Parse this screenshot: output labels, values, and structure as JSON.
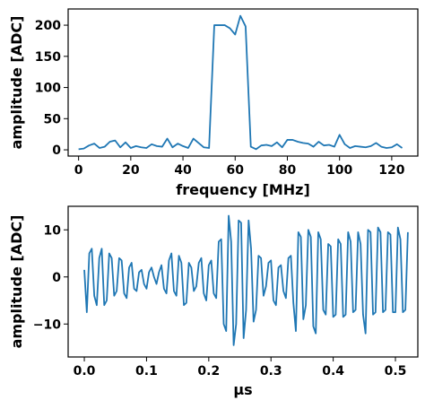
{
  "chart_data": [
    {
      "type": "line",
      "xlabel": "frequency [MHz]",
      "ylabel": "amplitude [ADC]",
      "xlim": [
        -4,
        130
      ],
      "ylim": [
        -10,
        226
      ],
      "xticks": [
        "0",
        "20",
        "40",
        "60",
        "80",
        "100",
        "120"
      ],
      "yticks": [
        "0",
        "50",
        "100",
        "150",
        "200"
      ],
      "grid": false,
      "series": [
        {
          "color": "#1f77b4",
          "x": [
            0,
            2,
            4,
            6,
            8,
            10,
            12,
            14,
            16,
            18,
            20,
            22,
            24,
            26,
            28,
            30,
            32,
            34,
            36,
            38,
            40,
            42,
            44,
            46,
            48,
            50,
            52,
            54,
            56,
            58,
            60,
            62,
            64,
            66,
            68,
            70,
            72,
            74,
            76,
            78,
            80,
            82,
            84,
            86,
            88,
            90,
            92,
            94,
            96,
            98,
            100,
            102,
            104,
            106,
            108,
            110,
            112,
            114,
            116,
            118,
            120,
            122,
            124
          ],
          "values": [
            1,
            2,
            7,
            10,
            3,
            5,
            13,
            15,
            4,
            12,
            3,
            6,
            4,
            3,
            9,
            6,
            5,
            18,
            4,
            10,
            6,
            3,
            18,
            11,
            4,
            3,
            200,
            200,
            200,
            195,
            185,
            215,
            198,
            5,
            1,
            7,
            8,
            6,
            12,
            4,
            16,
            16,
            13,
            11,
            10,
            5,
            13,
            7,
            8,
            5,
            24,
            9,
            3,
            6,
            5,
            4,
            6,
            11,
            5,
            3,
            4,
            9,
            3
          ]
        }
      ]
    },
    {
      "type": "line",
      "xlabel": "μs",
      "ylabel": "amplitude [ADC]",
      "xlim": [
        -0.026,
        0.536
      ],
      "ylim": [
        -17,
        15
      ],
      "xticks": [
        "0.0",
        "0.1",
        "0.2",
        "0.3",
        "0.4",
        "0.5"
      ],
      "yticks": [
        "−10",
        "0",
        "10"
      ],
      "grid": false,
      "series": [
        {
          "color": "#1f77b4",
          "x_step": 0.004,
          "values": [
            1.5,
            -7.5,
            5.0,
            6.0,
            -4.0,
            -6.0,
            4.0,
            6.0,
            -6.0,
            -5.0,
            5.0,
            4.0,
            -4.0,
            -3.0,
            4.0,
            3.5,
            -3.5,
            -4.5,
            2.0,
            3.0,
            -2.5,
            -3.0,
            1.0,
            1.5,
            -1.5,
            -2.5,
            1.0,
            2.0,
            0.0,
            -1.5,
            1.0,
            2.5,
            -2.5,
            -3.5,
            3.5,
            5.0,
            -3.0,
            -4.0,
            4.5,
            3.0,
            -6.0,
            -5.5,
            3.0,
            2.0,
            -3.0,
            -2.0,
            3.0,
            4.0,
            -3.5,
            -5.0,
            2.5,
            3.5,
            -3.5,
            -4.5,
            7.5,
            8.0,
            -10.0,
            -11.5,
            13.0,
            7.5,
            -14.5,
            -10.0,
            12.0,
            11.5,
            -13.0,
            -7.0,
            12.0,
            6.0,
            -9.5,
            -7.0,
            4.5,
            4.0,
            -4.0,
            -2.0,
            3.0,
            3.5,
            -5.0,
            -6.0,
            2.0,
            2.5,
            -3.0,
            -4.5,
            4.0,
            4.5,
            -5.5,
            -11.5,
            9.5,
            8.5,
            -9.0,
            -6.0,
            10.0,
            8.5,
            -10.5,
            -12.0,
            9.5,
            8.0,
            -7.0,
            -8.0,
            7.0,
            6.5,
            -8.5,
            -8.0,
            8.0,
            7.0,
            -8.5,
            -8.0,
            9.5,
            7.5,
            -7.5,
            -7.0,
            9.5,
            7.0,
            -8.0,
            -12.0,
            10.0,
            9.5,
            -8.0,
            -7.5,
            10.5,
            9.5,
            -7.5,
            -7.0,
            9.5,
            9.0,
            -7.5,
            -7.5,
            10.5,
            8.0,
            -7.5,
            -7.0,
            9.5
          ]
        }
      ]
    }
  ]
}
